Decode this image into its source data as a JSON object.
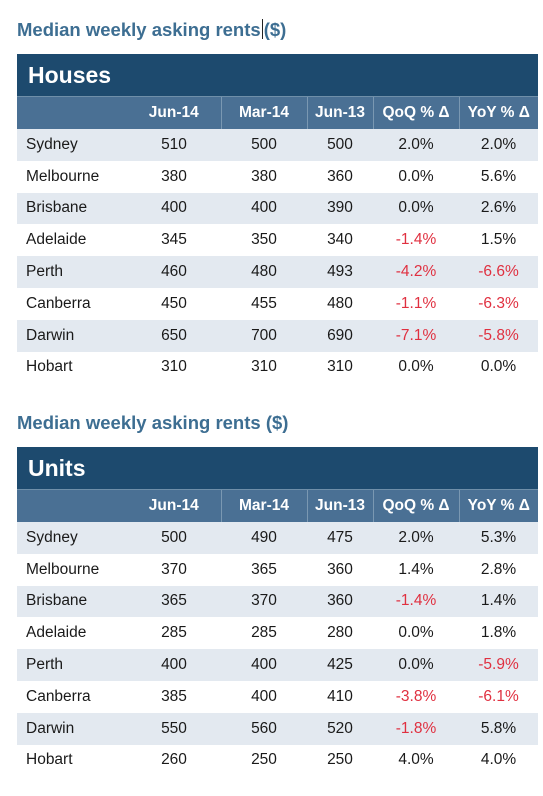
{
  "houses": {
    "title": "Median weekly asking rents",
    "title_unit": "($)",
    "panel_label": "Houses",
    "columns": [
      "Jun-14",
      "Mar-14",
      "Jun-13",
      "QoQ % Δ",
      "YoY % Δ"
    ],
    "rows": [
      {
        "city": "Sydney",
        "jun14": "510",
        "mar14": "500",
        "jun13": "500",
        "qoq": "2.0%",
        "yoy": "2.0%"
      },
      {
        "city": "Melbourne",
        "jun14": "380",
        "mar14": "380",
        "jun13": "360",
        "qoq": "0.0%",
        "yoy": "5.6%"
      },
      {
        "city": "Brisbane",
        "jun14": "400",
        "mar14": "400",
        "jun13": "390",
        "qoq": "0.0%",
        "yoy": "2.6%"
      },
      {
        "city": "Adelaide",
        "jun14": "345",
        "mar14": "350",
        "jun13": "340",
        "qoq": "-1.4%",
        "yoy": "1.5%"
      },
      {
        "city": "Perth",
        "jun14": "460",
        "mar14": "480",
        "jun13": "493",
        "qoq": "-4.2%",
        "yoy": "-6.6%"
      },
      {
        "city": "Canberra",
        "jun14": "450",
        "mar14": "455",
        "jun13": "480",
        "qoq": "-1.1%",
        "yoy": "-6.3%"
      },
      {
        "city": "Darwin",
        "jun14": "650",
        "mar14": "700",
        "jun13": "690",
        "qoq": "-7.1%",
        "yoy": "-5.8%"
      },
      {
        "city": "Hobart",
        "jun14": "310",
        "mar14": "310",
        "jun13": "310",
        "qoq": "0.0%",
        "yoy": "0.0%"
      }
    ]
  },
  "units": {
    "title": "Median weekly asking rents ($)",
    "panel_label": "Units",
    "columns": [
      "Jun-14",
      "Mar-14",
      "Jun-13",
      "QoQ % Δ",
      "YoY % Δ"
    ],
    "rows": [
      {
        "city": "Sydney",
        "jun14": "500",
        "mar14": "490",
        "jun13": "475",
        "qoq": "2.0%",
        "yoy": "5.3%"
      },
      {
        "city": "Melbourne",
        "jun14": "370",
        "mar14": "365",
        "jun13": "360",
        "qoq": "1.4%",
        "yoy": "2.8%"
      },
      {
        "city": "Brisbane",
        "jun14": "365",
        "mar14": "370",
        "jun13": "360",
        "qoq": "-1.4%",
        "yoy": "1.4%"
      },
      {
        "city": "Adelaide",
        "jun14": "285",
        "mar14": "285",
        "jun13": "280",
        "qoq": "0.0%",
        "yoy": "1.8%"
      },
      {
        "city": "Perth",
        "jun14": "400",
        "mar14": "400",
        "jun13": "425",
        "qoq": "0.0%",
        "yoy": "-5.9%"
      },
      {
        "city": "Canberra",
        "jun14": "385",
        "mar14": "400",
        "jun13": "410",
        "qoq": "-3.8%",
        "yoy": "-6.1%"
      },
      {
        "city": "Darwin",
        "jun14": "550",
        "mar14": "560",
        "jun13": "520",
        "qoq": "-1.8%",
        "yoy": "5.8%"
      },
      {
        "city": "Hobart",
        "jun14": "260",
        "mar14": "250",
        "jun13": "250",
        "qoq": "4.0%",
        "yoy": "4.0%"
      }
    ]
  },
  "colors": {
    "title": "#3d6e92",
    "panel_header": "#1d4a6e",
    "column_header": "#4a7094",
    "row_shade": "#e3e9f0",
    "negative": "#e03040"
  }
}
